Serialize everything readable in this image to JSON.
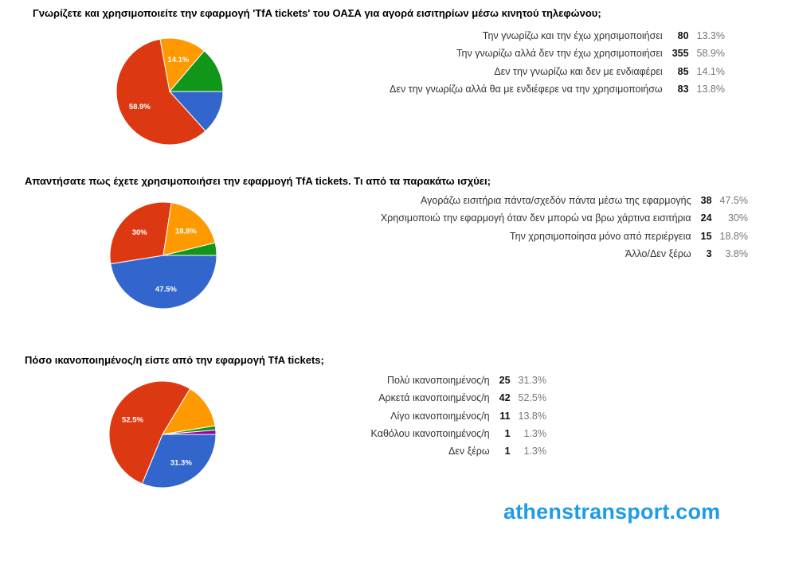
{
  "chart_data": [
    {
      "type": "pie",
      "title": "Γνωρίζετε και χρησιμοποιείτε την εφαρμογή 'TfA tickets' του ΟΑΣΑ για αγορά εισιτηρίων μέσω κινητού τηλεφώνου;",
      "slices": [
        {
          "label": "Την γνωρίζω και την έχω χρησιμοποιήσει",
          "count": "80",
          "percent": "13.3%",
          "value": 13.3,
          "color": "#3366cc"
        },
        {
          "label": "Την γνωρίζω αλλά δεν την έχω χρησιμοποιήσει",
          "count": "355",
          "percent": "58.9%",
          "value": 58.9,
          "color": "#dc3912"
        },
        {
          "label": "Δεν την γνωρίζω και δεν με ενδιαφέρει",
          "count": "85",
          "percent": "14.1%",
          "value": 14.1,
          "color": "#ff9900"
        },
        {
          "label": "Δεν την γνωρίζω αλλά θα με ενδιέφερε να την χρησιμοποιήσω",
          "count": "83",
          "percent": "13.8%",
          "value": 13.8,
          "color": "#109618"
        }
      ],
      "slice_order": [
        0,
        1,
        2,
        3
      ],
      "slice_labels": [
        {
          "slice": 1,
          "text": "58.9%"
        },
        {
          "slice": 2,
          "text": "14.1%"
        }
      ]
    },
    {
      "type": "pie",
      "title": "Απαντήσατε πως έχετε χρησιμοποιήσει την εφαρμογή TfA tickets. Τι από τα παρακάτω ισχύει;",
      "slices": [
        {
          "label": "Αγοράζω εισιτήρια πάντα/σχεδόν πάντα μέσω της εφαρμογής",
          "count": "38",
          "percent": "47.5%",
          "value": 47.5,
          "color": "#3366cc"
        },
        {
          "label": "Χρησιμοποιώ την εφαρμογή όταν δεν μπορώ να βρω χάρτινα εισιτήρια",
          "count": "24",
          "percent": "30%",
          "value": 30,
          "color": "#dc3912"
        },
        {
          "label": "Την χρησιμοποίησα μόνο από περιέργεια",
          "count": "15",
          "percent": "18.8%",
          "value": 18.8,
          "color": "#ff9900"
        },
        {
          "label": "Άλλο/Δεν ξέρω",
          "count": "3",
          "percent": "3.8%",
          "value": 3.8,
          "color": "#109618"
        }
      ],
      "slice_order": [
        0,
        1,
        2,
        3
      ],
      "slice_labels": [
        {
          "slice": 0,
          "text": "47.5%"
        },
        {
          "slice": 1,
          "text": "30%"
        },
        {
          "slice": 2,
          "text": "18.8%"
        }
      ]
    },
    {
      "type": "pie",
      "title": "Πόσο ικανοποιημένος/η είστε από την εφαρμογή TfA tickets;",
      "slices": [
        {
          "label": "Πολύ ικανοποιημένος/η",
          "count": "25",
          "percent": "31.3%",
          "value": 31.3,
          "color": "#3366cc"
        },
        {
          "label": "Αρκετά ικανοποιημένος/η",
          "count": "42",
          "percent": "52.5%",
          "value": 52.5,
          "color": "#dc3912"
        },
        {
          "label": "Λίγο ικανοποιημένος/η",
          "count": "11",
          "percent": "13.8%",
          "value": 13.8,
          "color": "#ff9900"
        },
        {
          "label": "Καθόλου ικανοποιημένος/η",
          "count": "1",
          "percent": "1.3%",
          "value": 1.3,
          "color": "#109618"
        },
        {
          "label": "Δεν ξέρω",
          "count": "1",
          "percent": "1.3%",
          "value": 1.3,
          "color": "#990099"
        }
      ],
      "slice_order": [
        0,
        1,
        2,
        3,
        4
      ],
      "slice_labels": [
        {
          "slice": 0,
          "text": "31.3%"
        },
        {
          "slice": 1,
          "text": "52.5%"
        }
      ]
    }
  ],
  "watermark": "athenstransport.com"
}
